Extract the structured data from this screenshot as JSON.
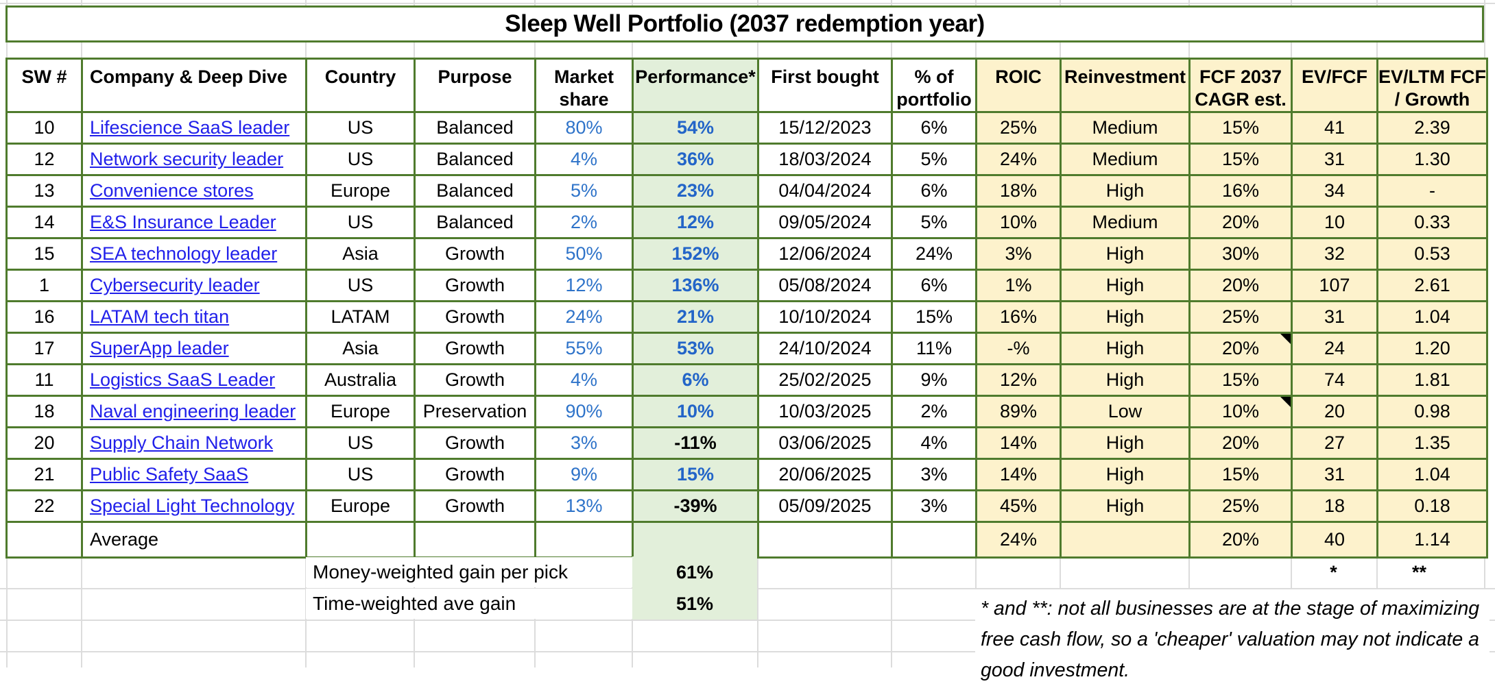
{
  "title": "Sleep Well Portfolio (2037 redemption year)",
  "columns": [
    {
      "line1": "SW #",
      "line2": ""
    },
    {
      "line1": "Company & Deep Dive",
      "line2": ""
    },
    {
      "line1": "Country",
      "line2": ""
    },
    {
      "line1": "Purpose",
      "line2": ""
    },
    {
      "line1": "Market",
      "line2": "share"
    },
    {
      "line1": "Performance*",
      "line2": ""
    },
    {
      "line1": "First bought",
      "line2": ""
    },
    {
      "line1": "% of",
      "line2": "portfolio"
    },
    {
      "line1": "ROIC",
      "line2": ""
    },
    {
      "line1": "Reinvestment",
      "line2": ""
    },
    {
      "line1": "FCF 2037",
      "line2": "CAGR est."
    },
    {
      "line1": "EV/FCF",
      "line2": ""
    },
    {
      "line1": "EV/LTM FCF",
      "line2": "/ Growth"
    }
  ],
  "rows": [
    {
      "sw": "10",
      "company": "Lifescience SaaS leader",
      "country": "US",
      "purpose": "Balanced",
      "market_share": "80%",
      "performance": "54%",
      "first_bought": "15/12/2023",
      "pct_of_portfolio": "6%",
      "roic": "25%",
      "reinvestment": "Medium",
      "fcf_2037_cagr": "15%",
      "ev_fcf": "41",
      "ev_ltm_fcf_growth": "2.39",
      "performance_negative": false,
      "fcf_note": false
    },
    {
      "sw": "12",
      "company": "Network security leader",
      "country": "US",
      "purpose": "Balanced",
      "market_share": "4%",
      "performance": "36%",
      "first_bought": "18/03/2024",
      "pct_of_portfolio": "5%",
      "roic": "24%",
      "reinvestment": "Medium",
      "fcf_2037_cagr": "15%",
      "ev_fcf": "31",
      "ev_ltm_fcf_growth": "1.30",
      "performance_negative": false,
      "fcf_note": false
    },
    {
      "sw": "13",
      "company": "Convenience stores",
      "country": "Europe",
      "purpose": "Balanced",
      "market_share": "5%",
      "performance": "23%",
      "first_bought": "04/04/2024",
      "pct_of_portfolio": "6%",
      "roic": "18%",
      "reinvestment": "High",
      "fcf_2037_cagr": "16%",
      "ev_fcf": "34",
      "ev_ltm_fcf_growth": "-",
      "performance_negative": false,
      "fcf_note": false
    },
    {
      "sw": "14",
      "company": "E&S Insurance Leader",
      "country": "US",
      "purpose": "Balanced",
      "market_share": "2%",
      "performance": "12%",
      "first_bought": "09/05/2024",
      "pct_of_portfolio": "5%",
      "roic": "10%",
      "reinvestment": "Medium",
      "fcf_2037_cagr": "20%",
      "ev_fcf": "10",
      "ev_ltm_fcf_growth": "0.33",
      "performance_negative": false,
      "fcf_note": false
    },
    {
      "sw": "15",
      "company": "SEA technology leader",
      "country": "Asia",
      "purpose": "Growth",
      "market_share": "50%",
      "performance": "152%",
      "first_bought": "12/06/2024",
      "pct_of_portfolio": "24%",
      "roic": "3%",
      "reinvestment": "High",
      "fcf_2037_cagr": "30%",
      "ev_fcf": "32",
      "ev_ltm_fcf_growth": "0.53",
      "performance_negative": false,
      "fcf_note": false
    },
    {
      "sw": "1",
      "company": "Cybersecurity leader",
      "country": "US",
      "purpose": "Growth",
      "market_share": "12%",
      "performance": "136%",
      "first_bought": "05/08/2024",
      "pct_of_portfolio": "6%",
      "roic": "1%",
      "reinvestment": "High",
      "fcf_2037_cagr": "20%",
      "ev_fcf": "107",
      "ev_ltm_fcf_growth": "2.61",
      "performance_negative": false,
      "fcf_note": false
    },
    {
      "sw": "16",
      "company": "LATAM tech titan",
      "country": "LATAM",
      "purpose": "Growth",
      "market_share": "24%",
      "performance": "21%",
      "first_bought": "10/10/2024",
      "pct_of_portfolio": "15%",
      "roic": "16%",
      "reinvestment": "High",
      "fcf_2037_cagr": "25%",
      "ev_fcf": "31",
      "ev_ltm_fcf_growth": "1.04",
      "performance_negative": false,
      "fcf_note": false
    },
    {
      "sw": "17",
      "company": "SuperApp leader",
      "country": "Asia",
      "purpose": "Growth",
      "market_share": "55%",
      "performance": "53%",
      "first_bought": "24/10/2024",
      "pct_of_portfolio": "11%",
      "roic": "-%",
      "reinvestment": "High",
      "fcf_2037_cagr": "20%",
      "ev_fcf": "24",
      "ev_ltm_fcf_growth": "1.20",
      "performance_negative": false,
      "fcf_note": true
    },
    {
      "sw": "11",
      "company": "Logistics SaaS Leader",
      "country": "Australia",
      "purpose": "Growth",
      "market_share": "4%",
      "performance": "6%",
      "first_bought": "25/02/2025",
      "pct_of_portfolio": "9%",
      "roic": "12%",
      "reinvestment": "High",
      "fcf_2037_cagr": "15%",
      "ev_fcf": "74",
      "ev_ltm_fcf_growth": "1.81",
      "performance_negative": false,
      "fcf_note": false
    },
    {
      "sw": "18",
      "company": "Naval engineering leader",
      "country": "Europe",
      "purpose": "Preservation",
      "market_share": "90%",
      "performance": "10%",
      "first_bought": "10/03/2025",
      "pct_of_portfolio": "2%",
      "roic": "89%",
      "reinvestment": "Low",
      "fcf_2037_cagr": "10%",
      "ev_fcf": "20",
      "ev_ltm_fcf_growth": "0.98",
      "performance_negative": false,
      "fcf_note": true
    },
    {
      "sw": "20",
      "company": "Supply Chain Network",
      "country": "US",
      "purpose": "Growth",
      "market_share": "3%",
      "performance": "-11%",
      "first_bought": "03/06/2025",
      "pct_of_portfolio": "4%",
      "roic": "14%",
      "reinvestment": "High",
      "fcf_2037_cagr": "20%",
      "ev_fcf": "27",
      "ev_ltm_fcf_growth": "1.35",
      "performance_negative": true,
      "fcf_note": false
    },
    {
      "sw": "21",
      "company": "Public Safety SaaS",
      "country": "US",
      "purpose": "Growth",
      "market_share": "9%",
      "performance": "15%",
      "first_bought": "20/06/2025",
      "pct_of_portfolio": "3%",
      "roic": "14%",
      "reinvestment": "High",
      "fcf_2037_cagr": "15%",
      "ev_fcf": "31",
      "ev_ltm_fcf_growth": "1.04",
      "performance_negative": false,
      "fcf_note": false
    },
    {
      "sw": "22",
      "company": "Special Light Technology",
      "country": "Europe",
      "purpose": "Growth",
      "market_share": "13%",
      "performance": "-39%",
      "first_bought": "05/09/2025",
      "pct_of_portfolio": "3%",
      "roic": "45%",
      "reinvestment": "High",
      "fcf_2037_cagr": "25%",
      "ev_fcf": "18",
      "ev_ltm_fcf_growth": "0.18",
      "performance_negative": true,
      "fcf_note": false
    }
  ],
  "average_row": {
    "label": "Average",
    "roic": "24%",
    "fcf_2037_cagr": "20%",
    "ev_fcf": "40",
    "ev_ltm_fcf_growth": "1.14"
  },
  "summary": {
    "money_weighted_label": "Money-weighted gain per pick",
    "money_weighted_value": "61%",
    "time_weighted_label": "Time-weighted ave gain",
    "time_weighted_value": "51%",
    "ev_fcf_footnote_mark": "*",
    "ev_ltm_footnote_mark": "**"
  },
  "footnote": {
    "line1": "* and **: not all businesses are at the stage of maximizing",
    "line2": "free cash flow, so a 'cheaper' valuation may not indicate a",
    "line3": "good investment."
  },
  "colors": {
    "table_border_green": "#4f7b2d",
    "performance_fill_green": "#e2efda",
    "metrics_fill_yellow": "#fdf2cc",
    "hyperlink_blue": "#2120ea",
    "market_share_blue": "#2e73c9",
    "performance_blue": "#2365c8",
    "negative_performance_text": "#000000",
    "gridline_gray": "#dcdcdc",
    "note_marker_black": "#000000"
  }
}
